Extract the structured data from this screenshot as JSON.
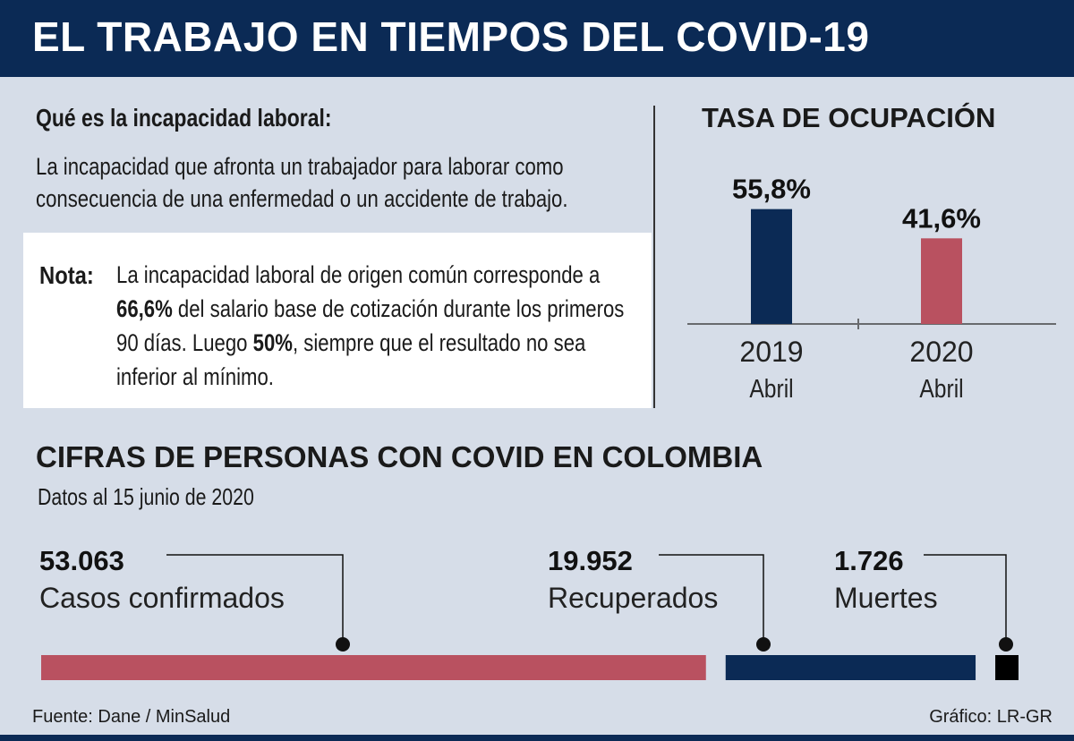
{
  "title": "EL TRABAJO EN TIEMPOS DEL COVID-19",
  "definition": {
    "heading": "Qué es la incapacidad laboral:",
    "text": "La incapacidad que afronta un trabajador para laborar como consecuencia de una enfermedad o un accidente de trabajo."
  },
  "note": {
    "label": "Nota:",
    "part1": "La incapacidad laboral de origen común corresponde a ",
    "highlight1": "66,6%",
    "part2": " del salario base de cotización durante los primeros 90 días. Luego ",
    "highlight2": "50%",
    "part3": ", siempre que el resultado no sea inferior al mínimo."
  },
  "source": "Fuente: Dane / MinSalud",
  "credit": "Gráfico: LR-GR",
  "colors": {
    "navy": "#0b2a55",
    "red": "#b95160",
    "black": "#000000"
  },
  "chart_data": [
    {
      "type": "bar",
      "title": "TASA DE OCUPACIÓN",
      "categories": [
        "2019",
        "2020"
      ],
      "sublabels": [
        "Abril",
        "Abril"
      ],
      "values": [
        55.8,
        41.6
      ],
      "value_labels": [
        "55,8%",
        "41,6%"
      ],
      "unit": "%",
      "colors": [
        "#0b2a55",
        "#b95160"
      ]
    },
    {
      "type": "bar",
      "orientation": "horizontal",
      "title": "CIFRAS DE PERSONAS CON COVID EN COLOMBIA",
      "subtitle": "Datos al 15 junio de 2020",
      "categories": [
        "Casos confirmados",
        "Recuperados",
        "Muertes"
      ],
      "values": [
        53063,
        19952,
        1726
      ],
      "value_labels": [
        "53.063",
        "19.952",
        "1.726"
      ],
      "colors": [
        "#b95160",
        "#0b2a55",
        "#000000"
      ]
    }
  ]
}
